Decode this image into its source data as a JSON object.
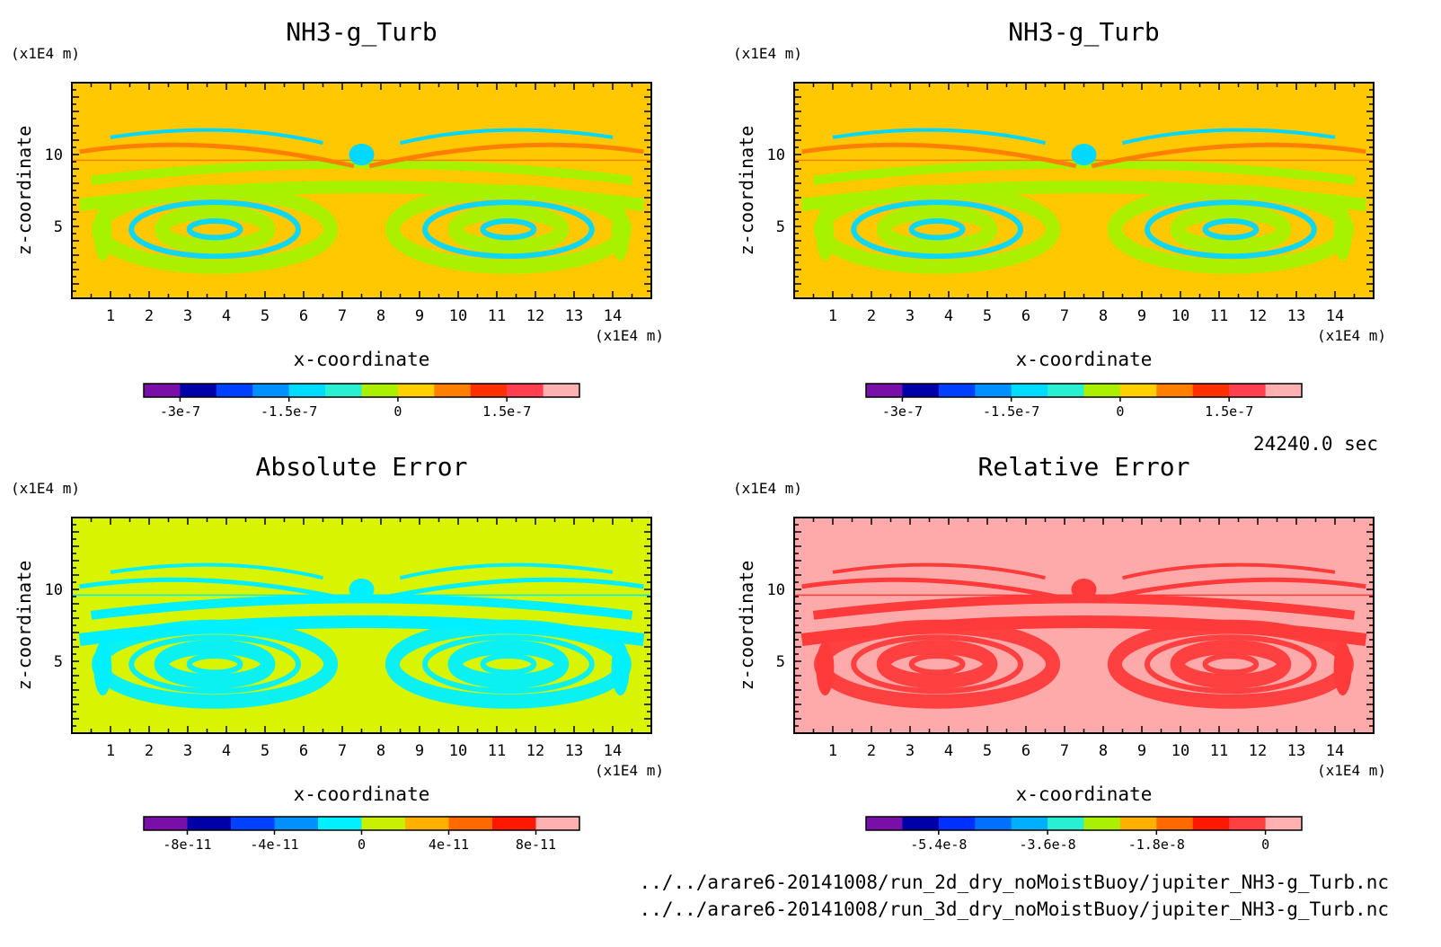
{
  "time_label": "24240.0 sec",
  "footer": {
    "file_2d": "../../arare6-20141008/run_2d_dry_noMoistBuoy/jupiter_NH3-g_Turb.nc",
    "file_3d": "../../arare6-20141008/run_3d_dry_noMoistBuoy/jupiter_NH3-g_Turb.nc"
  },
  "chart_data": [
    {
      "type": "heatmap",
      "title": "NH3-g_Turb",
      "xlabel": "x-coordinate",
      "ylabel": "z-coordinate",
      "x_unit": "(x1E4 m)",
      "y_unit": "(x1E4 m)",
      "xlim": [
        0,
        15
      ],
      "ylim": [
        0,
        15
      ],
      "x_ticks": [
        1,
        2,
        3,
        4,
        5,
        6,
        7,
        8,
        9,
        10,
        11,
        12,
        13,
        14
      ],
      "y_ticks": [
        5,
        10
      ],
      "colorbar": {
        "colors": [
          "#7a0ea8",
          "#0000a8",
          "#0040ff",
          "#0090ff",
          "#00dcff",
          "#28f0d0",
          "#aaf000",
          "#ffd000",
          "#ff8000",
          "#ff3000",
          "#ff4050",
          "#ffb0b0"
        ],
        "tick_labels": [
          "-3e-7",
          "-1.5e-7",
          "0",
          "1.5e-7"
        ],
        "tick_index": [
          1,
          4,
          7,
          10
        ]
      },
      "palette": {
        "background": "#ffc800",
        "band": "#a6f200",
        "accent": "#ff8000",
        "minor": "#00d8ff",
        "top": "#ffc800"
      }
    },
    {
      "type": "heatmap",
      "title": "NH3-g_Turb",
      "xlabel": "x-coordinate",
      "ylabel": "z-coordinate",
      "x_unit": "(x1E4 m)",
      "y_unit": "(x1E4 m)",
      "xlim": [
        0,
        15
      ],
      "ylim": [
        0,
        15
      ],
      "x_ticks": [
        1,
        2,
        3,
        4,
        5,
        6,
        7,
        8,
        9,
        10,
        11,
        12,
        13,
        14
      ],
      "y_ticks": [
        5,
        10
      ],
      "colorbar": {
        "colors": [
          "#7a0ea8",
          "#0000a8",
          "#0040ff",
          "#0090ff",
          "#00dcff",
          "#28f0d0",
          "#aaf000",
          "#ffd000",
          "#ff8000",
          "#ff3000",
          "#ff4050",
          "#ffb0b0"
        ],
        "tick_labels": [
          "-3e-7",
          "-1.5e-7",
          "0",
          "1.5e-7"
        ],
        "tick_index": [
          1,
          4,
          7,
          10
        ]
      },
      "palette": {
        "background": "#ffc800",
        "band": "#a6f200",
        "accent": "#ff8000",
        "minor": "#00d8ff",
        "top": "#ffc800"
      }
    },
    {
      "type": "heatmap",
      "title": "Absolute Error",
      "xlabel": "x-coordinate",
      "ylabel": "z-coordinate",
      "x_unit": "(x1E4 m)",
      "y_unit": "(x1E4 m)",
      "xlim": [
        0,
        15
      ],
      "ylim": [
        0,
        15
      ],
      "x_ticks": [
        1,
        2,
        3,
        4,
        5,
        6,
        7,
        8,
        9,
        10,
        11,
        12,
        13,
        14
      ],
      "y_ticks": [
        5,
        10
      ],
      "colorbar": {
        "colors": [
          "#7a0ea8",
          "#0000a8",
          "#0040ff",
          "#0090ff",
          "#00f0ff",
          "#c8f000",
          "#ffb000",
          "#ff6a00",
          "#ff1800",
          "#ffb0b0"
        ],
        "tick_labels": [
          "-8e-11",
          "-4e-11",
          "0",
          "4e-11",
          "8e-11"
        ],
        "tick_index": [
          1,
          3,
          5,
          7,
          9
        ]
      },
      "palette": {
        "background": "#d8f400",
        "band": "#00f0ff",
        "accent": "#00f0ff",
        "minor": "#00f0ff",
        "top": "#d8f400"
      }
    },
    {
      "type": "heatmap",
      "title": "Relative Error",
      "xlabel": "x-coordinate",
      "ylabel": "z-coordinate",
      "x_unit": "(x1E4 m)",
      "y_unit": "(x1E4 m)",
      "xlim": [
        0,
        15
      ],
      "ylim": [
        0,
        15
      ],
      "x_ticks": [
        1,
        2,
        3,
        4,
        5,
        6,
        7,
        8,
        9,
        10,
        11,
        12,
        13,
        14
      ],
      "y_ticks": [
        5,
        10
      ],
      "colorbar": {
        "colors": [
          "#7a0ea8",
          "#0000a8",
          "#0030ff",
          "#0070ff",
          "#00b0ff",
          "#28f0d0",
          "#aaf000",
          "#ffb000",
          "#ff6a00",
          "#ff1800",
          "#ff4040",
          "#ffb0b0"
        ],
        "tick_labels": [
          "-5.4e-8",
          "-3.6e-8",
          "-1.8e-8",
          "0"
        ],
        "tick_index": [
          2,
          5,
          8,
          11
        ]
      },
      "palette": {
        "background": "#ffaaaa",
        "band": "#ff3a3a",
        "accent": "#ff3a3a",
        "minor": "#ff3a3a",
        "top": "#ffaaaa"
      }
    }
  ]
}
